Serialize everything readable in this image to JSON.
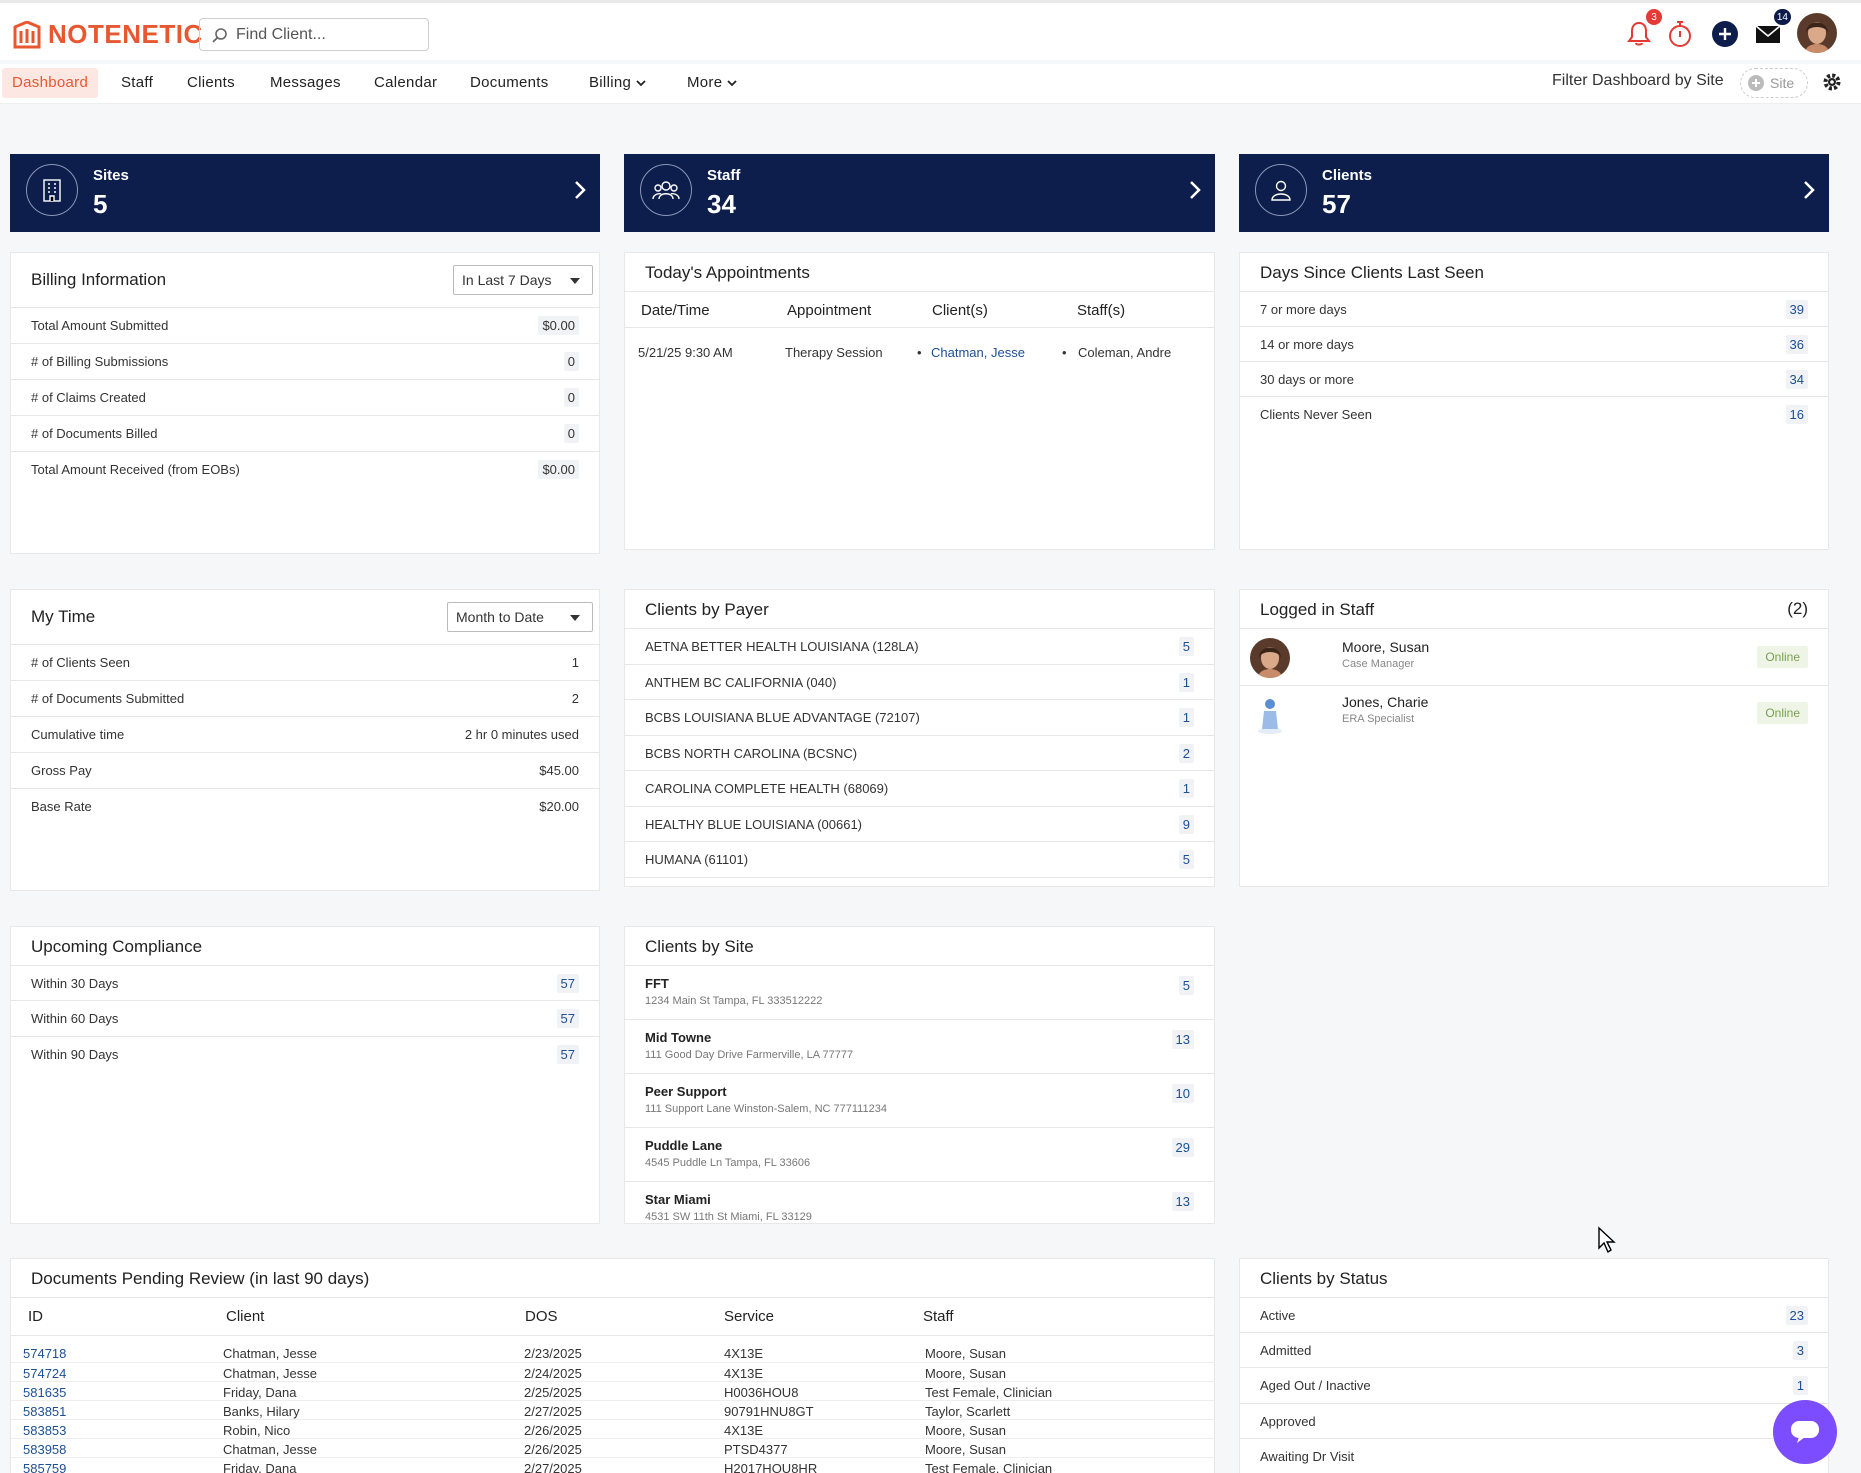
{
  "app": {
    "name": "NOTENETIC"
  },
  "search": {
    "placeholder": "Find Client..."
  },
  "header": {
    "notifications_count": "3",
    "messages_count": "14"
  },
  "nav": {
    "items": [
      "Dashboard",
      "Staff",
      "Clients",
      "Messages",
      "Calendar",
      "Documents",
      "Billing",
      "More"
    ],
    "active": "Dashboard",
    "filter_label": "Filter Dashboard by Site",
    "site_chip": "Site"
  },
  "stats": [
    {
      "label": "Sites",
      "value": "5"
    },
    {
      "label": "Staff",
      "value": "34"
    },
    {
      "label": "Clients",
      "value": "57"
    }
  ],
  "billing": {
    "title": "Billing Information",
    "range": "In Last 7 Days",
    "rows": [
      {
        "label": "Total Amount Submitted",
        "value": "$0.00"
      },
      {
        "label": "# of Billing Submissions",
        "value": "0"
      },
      {
        "label": "# of Claims Created",
        "value": "0"
      },
      {
        "label": "# of Documents Billed",
        "value": "0"
      },
      {
        "label": "Total Amount Received (from EOBs)",
        "value": "$0.00"
      }
    ]
  },
  "appointments": {
    "title": "Today's Appointments",
    "columns": [
      "Date/Time",
      "Appointment",
      "Client(s)",
      "Staff(s)"
    ],
    "rows": [
      {
        "datetime": "5/21/25 9:30 AM",
        "appointment": "Therapy Session",
        "client": "Chatman, Jesse",
        "staff": "Coleman, Andre"
      }
    ]
  },
  "days_since": {
    "title": "Days Since Clients Last Seen",
    "rows": [
      {
        "label": "7 or more days",
        "value": "39"
      },
      {
        "label": "14 or more days",
        "value": "36"
      },
      {
        "label": "30 days or more",
        "value": "34"
      },
      {
        "label": "Clients Never Seen",
        "value": "16"
      }
    ]
  },
  "my_time": {
    "title": "My Time",
    "range": "Month to Date",
    "rows": [
      {
        "label": "# of Clients Seen",
        "value": "1"
      },
      {
        "label": "# of Documents Submitted",
        "value": "2"
      },
      {
        "label": "Cumulative time",
        "value": "2 hr 0 minutes used"
      },
      {
        "label": "Gross Pay",
        "value": "$45.00"
      },
      {
        "label": "Base Rate",
        "value": "$20.00"
      }
    ]
  },
  "payer": {
    "title": "Clients by Payer",
    "rows": [
      {
        "label": "AETNA BETTER HEALTH LOUISIANA (128LA)",
        "value": "5"
      },
      {
        "label": "ANTHEM BC CALIFORNIA (040)",
        "value": "1"
      },
      {
        "label": "BCBS LOUISIANA BLUE ADVANTAGE (72107)",
        "value": "1"
      },
      {
        "label": "BCBS NORTH CAROLINA (BCSNC)",
        "value": "2"
      },
      {
        "label": "CAROLINA COMPLETE HEALTH (68069)",
        "value": "1"
      },
      {
        "label": "HEALTHY BLUE LOUISIANA (00661)",
        "value": "9"
      },
      {
        "label": "HUMANA (61101)",
        "value": "5"
      }
    ]
  },
  "logged_staff": {
    "title": "Logged in Staff",
    "count": "(2)",
    "rows": [
      {
        "name": "Moore, Susan",
        "role": "Case Manager",
        "status": "Online"
      },
      {
        "name": "Jones, Charie",
        "role": "ERA Specialist",
        "status": "Online"
      }
    ]
  },
  "compliance": {
    "title": "Upcoming Compliance",
    "rows": [
      {
        "label": "Within 30 Days",
        "value": "57"
      },
      {
        "label": "Within 60 Days",
        "value": "57"
      },
      {
        "label": "Within 90 Days",
        "value": "57"
      }
    ]
  },
  "by_site": {
    "title": "Clients by Site",
    "rows": [
      {
        "name": "FFT",
        "address": "1234 Main St Tampa, FL 333512222",
        "value": "5"
      },
      {
        "name": "Mid Towne",
        "address": "111 Good Day Drive Farmerville, LA 77777",
        "value": "13"
      },
      {
        "name": "Peer Support",
        "address": "111 Support Lane Winston-Salem, NC 777111234",
        "value": "10"
      },
      {
        "name": "Puddle Lane",
        "address": "4545 Puddle Ln Tampa, FL 33606",
        "value": "29"
      },
      {
        "name": "Star Miami",
        "address": "4531 SW 11th St Miami, FL 33129",
        "value": "13"
      }
    ]
  },
  "pending": {
    "title": "Documents Pending Review (in last 90 days)",
    "columns": [
      "ID",
      "Client",
      "DOS",
      "Service",
      "Staff"
    ],
    "rows": [
      {
        "id": "574718",
        "client": "Chatman, Jesse",
        "dos": "2/23/2025",
        "service": "4X13E",
        "staff": "Moore, Susan"
      },
      {
        "id": "574724",
        "client": "Chatman, Jesse",
        "dos": "2/24/2025",
        "service": "4X13E",
        "staff": "Moore, Susan"
      },
      {
        "id": "581635",
        "client": "Friday, Dana",
        "dos": "2/25/2025",
        "service": "H0036HOU8",
        "staff": "Test Female, Clinician"
      },
      {
        "id": "583851",
        "client": "Banks, Hilary",
        "dos": "2/27/2025",
        "service": "90791HNU8GT",
        "staff": "Taylor, Scarlett"
      },
      {
        "id": "583853",
        "client": "Robin, Nico",
        "dos": "2/26/2025",
        "service": "4X13E",
        "staff": "Moore, Susan"
      },
      {
        "id": "583958",
        "client": "Chatman, Jesse",
        "dos": "2/26/2025",
        "service": "PTSD4377",
        "staff": "Moore, Susan"
      },
      {
        "id": "585759",
        "client": "Friday, Dana",
        "dos": "2/27/2025",
        "service": "H2017HOU8HR",
        "staff": "Test Female, Clinician"
      }
    ]
  },
  "status": {
    "title": "Clients by Status",
    "rows": [
      {
        "label": "Active",
        "value": "23"
      },
      {
        "label": "Admitted",
        "value": "3"
      },
      {
        "label": "Aged Out / Inactive",
        "value": "1"
      },
      {
        "label": "Approved",
        "value": ""
      },
      {
        "label": "Awaiting Dr Visit",
        "value": ""
      }
    ]
  }
}
